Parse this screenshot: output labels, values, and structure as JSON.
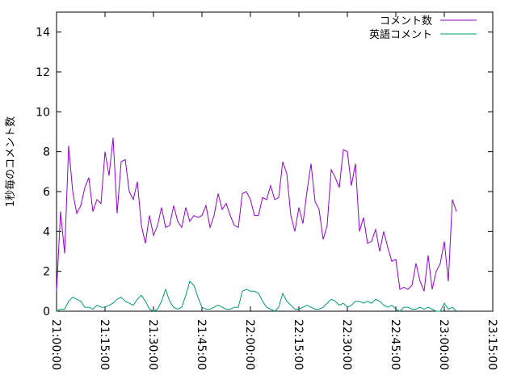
{
  "chart_data": {
    "type": "line",
    "title": "",
    "xlabel": "",
    "ylabel": "1秒毎のコメント数",
    "ylim": [
      0,
      15
    ],
    "yticks": [
      0,
      2,
      4,
      6,
      8,
      10,
      12,
      14
    ],
    "ytick_labels": [
      "0",
      "2",
      "4",
      "6",
      "8",
      "10",
      "12",
      "14"
    ],
    "x_start": "21:00:00",
    "x_end": "23:15:00",
    "x_step_minutes": 1.25,
    "xticks": [
      "21:00:00",
      "21:15:00",
      "21:30:00",
      "21:45:00",
      "22:00:00",
      "22:15:00",
      "22:30:00",
      "22:45:00",
      "23:00:00",
      "23:15:00"
    ],
    "grid": false,
    "legend_position": "top-right",
    "series": [
      {
        "name": "コメント数",
        "color": "#9400d3",
        "values": [
          1.0,
          5.0,
          2.9,
          8.3,
          6.0,
          4.9,
          5.3,
          6.2,
          6.7,
          5.0,
          5.6,
          5.4,
          8.0,
          6.8,
          8.7,
          4.9,
          7.5,
          7.6,
          6.0,
          5.6,
          6.5,
          4.3,
          3.4,
          4.8,
          3.8,
          4.3,
          5.2,
          4.2,
          4.3,
          5.3,
          4.5,
          4.2,
          5.2,
          4.5,
          4.8,
          4.7,
          4.8,
          5.3,
          4.2,
          4.8,
          5.9,
          5.1,
          5.4,
          4.8,
          4.3,
          4.2,
          5.9,
          6.0,
          5.6,
          4.8,
          4.8,
          5.7,
          5.6,
          6.3,
          5.6,
          5.7,
          7.5,
          6.9,
          4.8,
          4.0,
          5.2,
          4.4,
          6.0,
          7.4,
          5.5,
          5.1,
          3.6,
          4.3,
          7.1,
          6.7,
          6.2,
          8.1,
          8.0,
          6.3,
          7.4,
          4.0,
          4.7,
          3.4,
          3.5,
          4.1,
          3.0,
          4.0,
          3.2,
          2.5,
          2.6,
          1.1,
          1.2,
          1.1,
          1.3,
          2.4,
          1.5,
          1.0,
          2.8,
          1.1,
          2.0,
          2.4,
          3.5,
          1.5,
          5.6,
          5.0
        ]
      },
      {
        "name": "英語コメント",
        "color": "#009e73",
        "values": [
          0.0,
          0.1,
          0.1,
          0.5,
          0.7,
          0.6,
          0.5,
          0.2,
          0.2,
          0.1,
          0.3,
          0.2,
          0.2,
          0.3,
          0.4,
          0.6,
          0.7,
          0.5,
          0.4,
          0.3,
          0.6,
          0.8,
          0.5,
          0.1,
          0.0,
          0.1,
          0.5,
          1.1,
          0.5,
          0.2,
          0.1,
          0.2,
          0.8,
          1.5,
          1.3,
          0.7,
          0.2,
          0.1,
          0.1,
          0.2,
          0.3,
          0.2,
          0.1,
          0.1,
          0.2,
          0.2,
          1.0,
          1.1,
          1.0,
          1.0,
          0.9,
          0.5,
          0.2,
          0.1,
          0.0,
          0.2,
          0.9,
          0.5,
          0.3,
          0.1,
          0.1,
          0.2,
          0.3,
          0.2,
          0.1,
          0.1,
          0.2,
          0.4,
          0.6,
          0.5,
          0.3,
          0.4,
          0.2,
          0.3,
          0.5,
          0.5,
          0.4,
          0.5,
          0.4,
          0.6,
          0.5,
          0.3,
          0.2,
          0.3,
          0.1,
          0.0,
          0.2,
          0.2,
          0.1,
          0.1,
          0.2,
          0.1,
          0.2,
          0.1,
          0.0,
          0.0,
          0.4,
          0.1,
          0.2,
          0.0
        ]
      }
    ]
  }
}
